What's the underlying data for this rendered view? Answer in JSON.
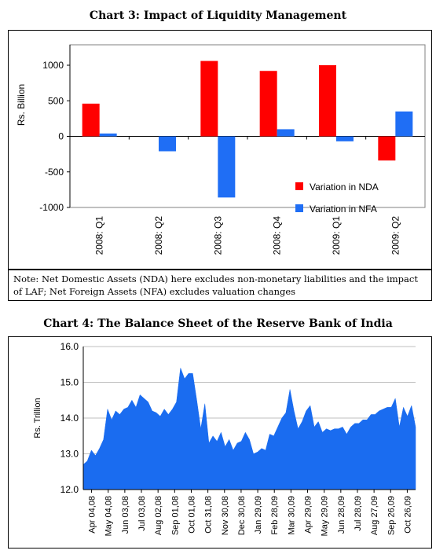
{
  "charts_title": {
    "chart3": "Chart 3: Impact of Liquidity Management",
    "chart4": "Chart 4: The Balance Sheet of the Reserve Bank of India"
  },
  "note": "Note: Net Domestic Assets (NDA) here excludes non-monetary liabilities and the impact of LAF; Net Foreign Assets (NFA) excludes valuation changes",
  "colors": {
    "nda": "#ff0000",
    "nfa": "#1f6ef5",
    "area": "#1a6cf0"
  },
  "chart_data": [
    {
      "type": "bar",
      "title": "Chart 3: Impact of Liquidity Management",
      "ylabel": "Rs. Billion",
      "ylim": [
        -1000,
        1000
      ],
      "yticks": [
        1000,
        500,
        0,
        -500,
        -1000
      ],
      "categories": [
        "2008: Q1",
        "2008: Q2",
        "2008: Q3",
        "2008: Q4",
        "2009: Q1",
        "2009: Q2"
      ],
      "series": [
        {
          "name": "Variation in NDA",
          "values": [
            460,
            0,
            1060,
            920,
            1000,
            -340
          ]
        },
        {
          "name": "Variation in NFA",
          "values": [
            40,
            -210,
            -860,
            100,
            -70,
            350
          ]
        }
      ],
      "legend": "bottom-right"
    },
    {
      "type": "area",
      "title": "Chart 4: The Balance Sheet of the Reserve Bank of India",
      "ylabel": "Rs. Trillion",
      "ylim": [
        12.0,
        16.0
      ],
      "yticks": [
        "16.0",
        "15.0",
        "14.0",
        "13.0",
        "12.0"
      ],
      "xticks": [
        "Apr 04,08",
        "May 04,08",
        "Jun 03,08",
        "Jul 03,08",
        "Aug 02,08",
        "Sep 01,08",
        "Oct 01,08",
        "Oct 31,08",
        "Nov 30,08",
        "Dec 30,08",
        "Jan 29,09",
        "Feb 28,09",
        "Mar 30,09",
        "Apr 29,09",
        "May 29,09",
        "Jun 28,09",
        "Jul 28,09",
        "Aug 27,09",
        "Sep 26,09",
        "Oct 26,09"
      ],
      "x": [
        "Apr 04,08",
        "Apr 11,08",
        "Apr 18,08",
        "Apr 25,08",
        "May 02,08",
        "May 09,08",
        "May 16,08",
        "May 23,08",
        "May 30,08",
        "Jun 06,08",
        "Jun 13,08",
        "Jun 20,08",
        "Jun 27,08",
        "Jul 04,08",
        "Jul 11,08",
        "Jul 18,08",
        "Jul 25,08",
        "Aug 01,08",
        "Aug 08,08",
        "Aug 15,08",
        "Aug 22,08",
        "Aug 29,08",
        "Sep 05,08",
        "Sep 12,08",
        "Sep 19,08",
        "Sep 26,08",
        "Oct 03,08",
        "Oct 10,08",
        "Oct 17,08",
        "Oct 24,08",
        "Oct 31,08",
        "Nov 07,08",
        "Nov 14,08",
        "Nov 21,08",
        "Nov 28,08",
        "Dec 05,08",
        "Dec 12,08",
        "Dec 19,08",
        "Dec 26,08",
        "Jan 02,09",
        "Jan 09,09",
        "Jan 16,09",
        "Jan 23,09",
        "Jan 30,09",
        "Feb 06,09",
        "Feb 13,09",
        "Feb 20,09",
        "Feb 27,09",
        "Mar 06,09",
        "Mar 13,09",
        "Mar 20,09",
        "Mar 27,09",
        "Apr 03,09",
        "Apr 10,09",
        "Apr 17,09",
        "Apr 24,09",
        "May 01,09",
        "May 08,09",
        "May 15,09",
        "May 22,09",
        "May 29,09",
        "Jun 05,09",
        "Jun 12,09",
        "Jun 19,09",
        "Jun 26,09",
        "Jul 03,09",
        "Jul 10,09",
        "Jul 17,09",
        "Jul 24,09",
        "Jul 31,09",
        "Aug 07,09",
        "Aug 14,09",
        "Aug 21,09",
        "Aug 28,09",
        "Sep 04,09",
        "Sep 11,09",
        "Sep 18,09",
        "Sep 25,09",
        "Oct 02,09",
        "Oct 09,09",
        "Oct 16,09",
        "Oct 23,09",
        "Oct 26,09"
      ],
      "values": [
        12.7,
        12.8,
        13.1,
        12.95,
        13.15,
        13.4,
        14.25,
        13.95,
        14.2,
        14.1,
        14.25,
        14.3,
        14.5,
        14.3,
        14.65,
        14.55,
        14.45,
        14.2,
        14.15,
        14.05,
        14.25,
        14.1,
        14.25,
        14.45,
        15.4,
        15.1,
        15.25,
        15.25,
        14.5,
        13.7,
        14.4,
        13.3,
        13.5,
        13.35,
        13.6,
        13.2,
        13.4,
        13.1,
        13.3,
        13.35,
        13.6,
        13.4,
        13.0,
        13.05,
        13.15,
        13.1,
        13.55,
        13.5,
        13.75,
        14.0,
        14.15,
        14.8,
        14.2,
        13.7,
        13.9,
        14.2,
        14.35,
        13.75,
        13.9,
        13.6,
        13.7,
        13.65,
        13.7,
        13.7,
        13.75,
        13.55,
        13.75,
        13.85,
        13.85,
        13.95,
        13.95,
        14.1,
        14.1,
        14.2,
        14.25,
        14.3,
        14.3,
        14.55,
        13.75,
        14.3,
        14.05,
        14.35,
        13.75
      ]
    }
  ]
}
